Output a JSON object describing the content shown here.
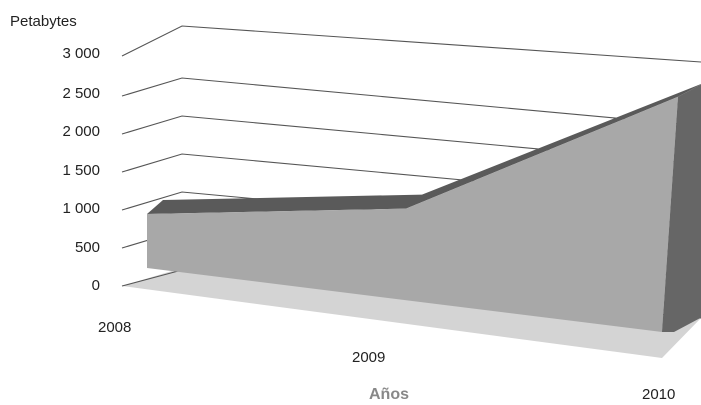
{
  "chart_data": {
    "type": "area",
    "style": "3d",
    "ylabel": "Petabytes",
    "xlabel": "Años",
    "categories": [
      "2008",
      "2009",
      "2010"
    ],
    "values": [
      500,
      950,
      2600
    ],
    "ylim": [
      0,
      3000
    ],
    "yticks": [
      0,
      500,
      1000,
      1500,
      2000,
      2500,
      3000
    ],
    "ytick_labels": [
      "0",
      "500",
      "1 000",
      "1 500",
      "2 000",
      "2 500",
      "3 000"
    ],
    "grid": true,
    "legend": "none",
    "colors": {
      "front": "#a8a8a8",
      "top": "#5a5a5a",
      "side": "#666666",
      "floor": "#d4d4d4",
      "grid": "#555555"
    }
  }
}
